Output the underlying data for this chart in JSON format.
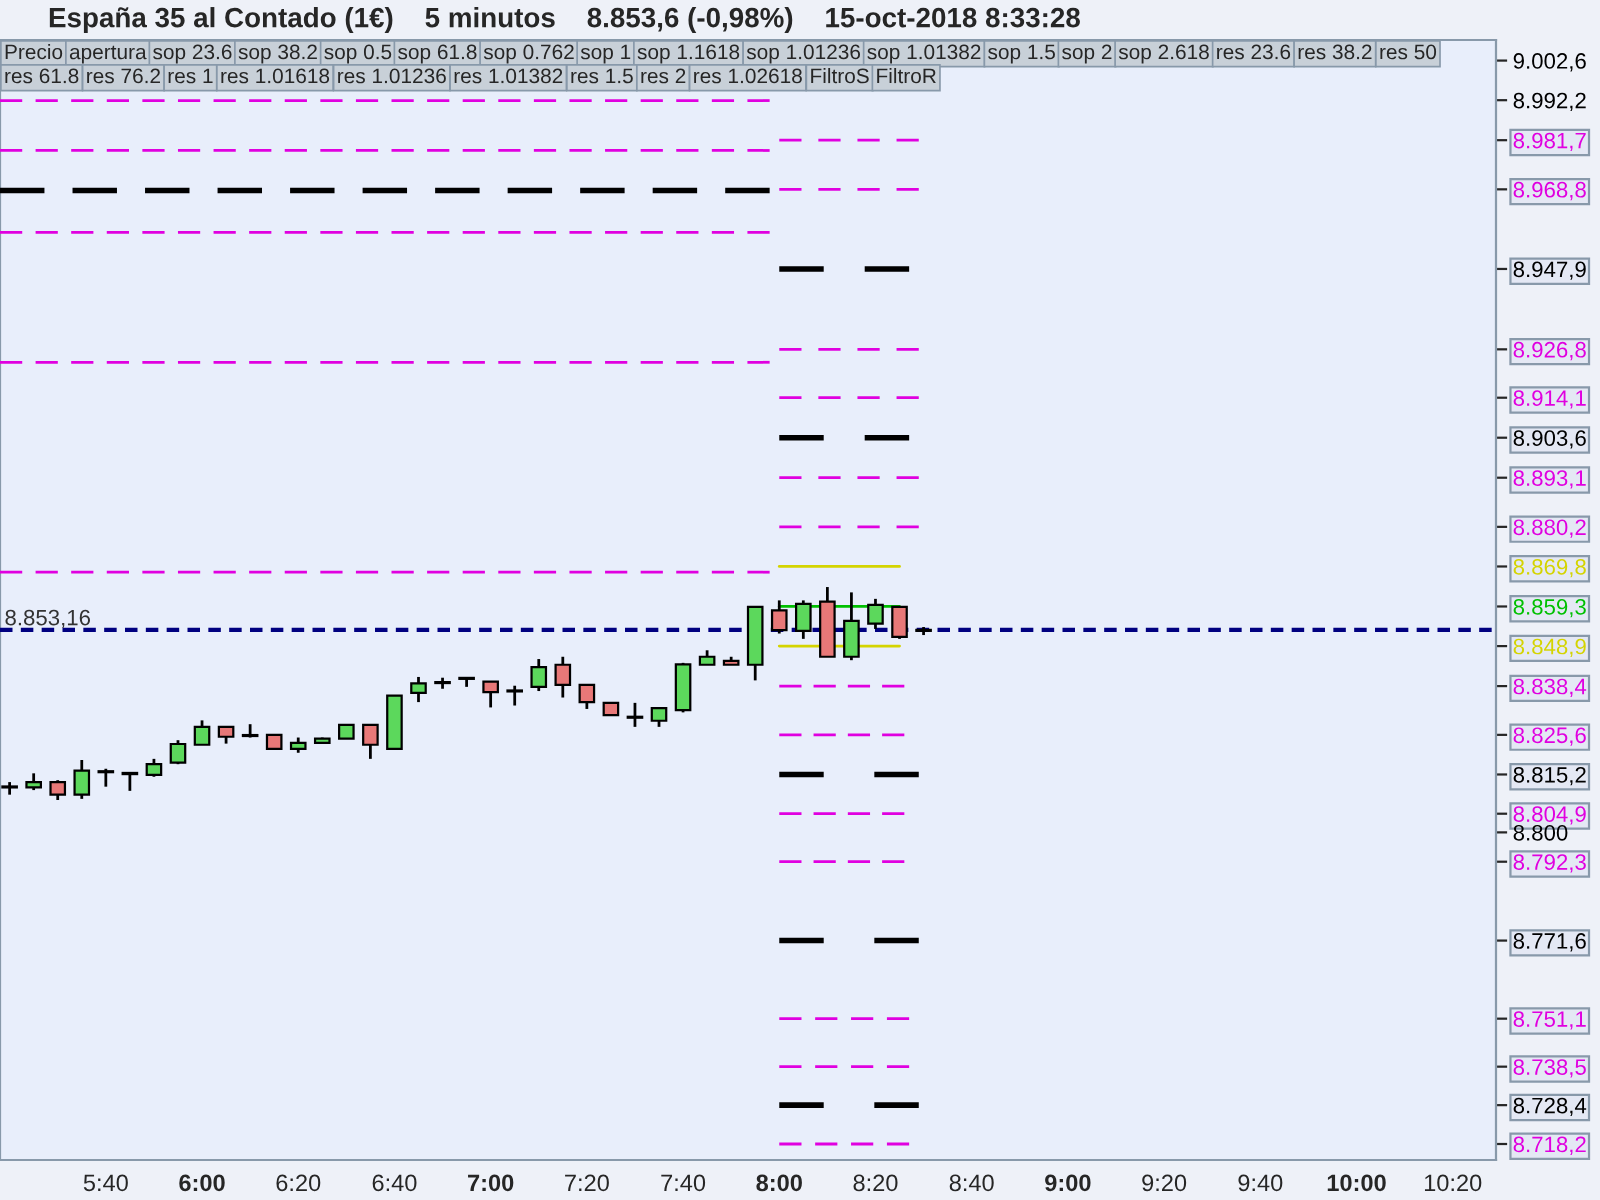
{
  "chart_data": {
    "type": "candlestick",
    "title": "España 35 al Contado (1€)    5 minutos    8.853,6 (-0,98%)    15-oct-2018 8:33:28",
    "annotations": [
      "Precio",
      "apertura",
      "sop 23.6",
      "sop 38.2",
      "sop 0.5",
      "sop 61.8",
      "sop 0.762",
      "sop 1",
      "sop 1.1618",
      "sop 1.01236",
      "sop 1.01382",
      "sop 1.5",
      "sop 2",
      "sop 2.618",
      "res 23.6",
      "res 38.2",
      "res 50",
      "res 61.8",
      "res 76.2",
      "res 1",
      "res 1.01618",
      "res 1.01236",
      "res 1.01382",
      "res 1.5",
      "res 2",
      "res 1.02618",
      "FiltroS",
      "FiltroR"
    ],
    "xlim": [
      "2018-10-15T05:18",
      "2018-10-15T10:29"
    ],
    "xticks": [
      {
        "value": "2018-10-15T05:40",
        "label": "5:40"
      },
      {
        "value": "2018-10-15T06:00",
        "label": "6:00"
      },
      {
        "value": "2018-10-15T06:20",
        "label": "6:20"
      },
      {
        "value": "2018-10-15T06:40",
        "label": "6:40"
      },
      {
        "value": "2018-10-15T07:00",
        "label": "7:00"
      },
      {
        "value": "2018-10-15T07:20",
        "label": "7:20"
      },
      {
        "value": "2018-10-15T07:40",
        "label": "7:40"
      },
      {
        "value": "2018-10-15T08:00",
        "label": "8:00"
      },
      {
        "value": "2018-10-15T08:20",
        "label": "8:20"
      },
      {
        "value": "2018-10-15T08:40",
        "label": "8:40"
      },
      {
        "value": "2018-10-15T09:00",
        "label": "9:00"
      },
      {
        "value": "2018-10-15T09:20",
        "label": "9:20"
      },
      {
        "value": "2018-10-15T09:40",
        "label": "9:40"
      },
      {
        "value": "2018-10-15T10:00",
        "label": "10:00"
      },
      {
        "value": "2018-10-15T10:20",
        "label": "10:20"
      }
    ],
    "ylim": [
      8714,
      9008
    ],
    "yticks": [
      {
        "value": 9002.6,
        "label": "9.002,6"
      },
      {
        "value": 8992.2,
        "label": "8.992,2"
      },
      {
        "value": 8981.7,
        "label": "8.981,7"
      },
      {
        "value": 8968.8,
        "label": "8.968,8"
      },
      {
        "value": 8947.9,
        "label": "8.947,9"
      },
      {
        "value": 8926.8,
        "label": "8.926,8"
      },
      {
        "value": 8914.1,
        "label": "8.914,1"
      },
      {
        "value": 8903.6,
        "label": "8.903,6"
      },
      {
        "value": 8893.1,
        "label": "8.893,1"
      },
      {
        "value": 8880.2,
        "label": "8.880,2"
      },
      {
        "value": 8869.8,
        "label": "8.869,8"
      },
      {
        "value": 8859.3,
        "label": "8.859,3"
      },
      {
        "value": 8848.9,
        "label": "8.848,9"
      },
      {
        "value": 8838.4,
        "label": "8.838,4"
      },
      {
        "value": 8825.6,
        "label": "8.825,6"
      },
      {
        "value": 8815.2,
        "label": "8.815,2"
      },
      {
        "value": 8804.9,
        "label": "8.804,9"
      },
      {
        "value": 8800,
        "label": "8.800"
      },
      {
        "value": 8792.3,
        "label": "8.792,3"
      },
      {
        "value": 8771.6,
        "label": "8.771,6"
      },
      {
        "value": 8751.1,
        "label": "8.751,1"
      },
      {
        "value": 8738.5,
        "label": "8.738,5"
      },
      {
        "value": 8728.4,
        "label": "8.728,4"
      },
      {
        "value": 8718.2,
        "label": "8.718,2"
      }
    ],
    "grid": false,
    "legend": false,
    "ref_lines": [
      {
        "axis": "y",
        "value": 8853.16,
        "label": "8.853,16",
        "color": "#000080",
        "line_style": "dashed"
      }
    ],
    "series": [
      {
        "x": [
          "2018-10-15T05:20",
          "2018-10-15T05:25",
          "2018-10-15T05:30",
          "2018-10-15T05:35",
          "2018-10-15T05:40",
          "2018-10-15T05:45",
          "2018-10-15T05:50",
          "2018-10-15T05:55",
          "2018-10-15T06:00",
          "2018-10-15T06:05",
          "2018-10-15T06:10",
          "2018-10-15T06:15",
          "2018-10-15T06:20",
          "2018-10-15T06:25",
          "2018-10-15T06:30",
          "2018-10-15T06:35",
          "2018-10-15T06:40",
          "2018-10-15T06:45",
          "2018-10-15T06:50",
          "2018-10-15T06:55",
          "2018-10-15T07:00",
          "2018-10-15T07:05",
          "2018-10-15T07:10",
          "2018-10-15T07:15",
          "2018-10-15T07:20",
          "2018-10-15T07:25",
          "2018-10-15T07:30",
          "2018-10-15T07:35",
          "2018-10-15T07:40",
          "2018-10-15T07:45",
          "2018-10-15T07:50",
          "2018-10-15T07:55",
          "2018-10-15T08:00",
          "2018-10-15T08:05",
          "2018-10-15T08:10",
          "2018-10-15T08:15",
          "2018-10-15T08:20",
          "2018-10-15T08:25",
          "2018-10-15T08:30"
        ],
        "ohlc": [
          [
            8811.8,
            8813.2,
            8809.9,
            8811.8
          ],
          [
            8811.8,
            8815.5,
            8811.1,
            8813.2
          ],
          [
            8813.2,
            8813.7,
            8808.5,
            8809.9
          ],
          [
            8809.9,
            8819.0,
            8808.8,
            8816.2
          ],
          [
            8815.8,
            8816.7,
            8812.0,
            8815.8
          ],
          [
            8815.6,
            8815.8,
            8810.9,
            8815.3
          ],
          [
            8815.1,
            8819.3,
            8814.6,
            8817.9
          ],
          [
            8818.3,
            8824.2,
            8817.9,
            8823.2
          ],
          [
            8823.0,
            8829.4,
            8823.0,
            8827.7
          ],
          [
            8827.7,
            8827.7,
            8823.3,
            8825.1
          ],
          [
            8825.4,
            8828.4,
            8824.9,
            8825.3
          ],
          [
            8825.6,
            8825.6,
            8821.8,
            8821.9
          ],
          [
            8821.9,
            8824.9,
            8820.9,
            8823.5
          ],
          [
            8823.5,
            8824.9,
            8823.2,
            8824.6
          ],
          [
            8824.6,
            8828.2,
            8824.6,
            8828.2
          ],
          [
            8828.2,
            8828.2,
            8819.3,
            8823.0
          ],
          [
            8821.9,
            8835.9,
            8821.9,
            8835.9
          ],
          [
            8836.6,
            8840.8,
            8834.2,
            8839.1
          ],
          [
            8839.2,
            8840.6,
            8837.7,
            8839.2
          ],
          [
            8840.3,
            8840.3,
            8838.2,
            8840.3
          ],
          [
            8839.6,
            8839.6,
            8832.8,
            8836.8
          ],
          [
            8837.0,
            8838.5,
            8833.3,
            8837.0
          ],
          [
            8838.2,
            8845.5,
            8837.1,
            8843.4
          ],
          [
            8844.0,
            8846.1,
            8835.4,
            8838.7
          ],
          [
            8838.7,
            8838.7,
            8832.4,
            8834.2
          ],
          [
            8834.0,
            8834.0,
            8830.8,
            8830.8
          ],
          [
            8830.1,
            8834.0,
            8827.7,
            8830.1
          ],
          [
            8829.3,
            8832.9,
            8827.7,
            8832.6
          ],
          [
            8832.1,
            8844.5,
            8831.5,
            8844.1
          ],
          [
            8844.0,
            8847.8,
            8844.0,
            8846.1
          ],
          [
            8845.0,
            8846.1,
            8844.0,
            8844.0
          ],
          [
            8844.0,
            8859.2,
            8839.9,
            8859.2
          ],
          [
            8858.3,
            8860.9,
            8852.2,
            8853.1
          ],
          [
            8852.9,
            8860.9,
            8850.8,
            8860.0
          ],
          [
            8860.6,
            8864.4,
            8846.1,
            8846.1
          ],
          [
            8846.1,
            8863.0,
            8845.2,
            8855.5
          ],
          [
            8854.8,
            8861.3,
            8853.4,
            8859.7
          ],
          [
            8859.2,
            8859.2,
            8850.8,
            8851.3
          ],
          [
            8852.9,
            8853.9,
            8851.8,
            8852.9
          ]
        ]
      },
      {
        "type": "line",
        "color": "#e000e0",
        "line_style": "dashed",
        "x": [
          "2018-10-15T05:18",
          "2018-10-15T07:58"
        ],
        "values": [
          8992.1,
          8992.1
        ]
      },
      {
        "type": "line",
        "color": "#e000e0",
        "line_style": "dashed",
        "x": [
          "2018-10-15T05:18",
          "2018-10-15T07:58"
        ],
        "values": [
          8979.0,
          8979.0
        ]
      },
      {
        "type": "line",
        "color": "#000000",
        "line_style": "dashed",
        "x": [
          "2018-10-15T05:18",
          "2018-10-15T07:58"
        ],
        "values": [
          8968.5,
          8968.5
        ]
      },
      {
        "type": "line",
        "color": "#e000e0",
        "line_style": "dashed",
        "x": [
          "2018-10-15T05:18",
          "2018-10-15T07:58"
        ],
        "values": [
          8957.5,
          8957.5
        ]
      },
      {
        "type": "line",
        "color": "#e000e0",
        "line_style": "dashed",
        "x": [
          "2018-10-15T05:18",
          "2018-10-15T07:58"
        ],
        "values": [
          8923.4,
          8923.4
        ]
      },
      {
        "type": "line",
        "color": "#e000e0",
        "line_style": "dashed",
        "x": [
          "2018-10-15T05:18",
          "2018-10-15T07:58"
        ],
        "values": [
          8868.3,
          8868.3
        ]
      },
      {
        "type": "line",
        "color": "#e000e0",
        "line_style": "dashed",
        "x": [
          "2018-10-15T08:00",
          "2018-10-15T08:29"
        ],
        "values": [
          8981.7,
          8981.7
        ]
      },
      {
        "type": "line",
        "color": "#e000e0",
        "line_style": "dashed",
        "x": [
          "2018-10-15T08:00",
          "2018-10-15T08:29"
        ],
        "values": [
          8968.8,
          8968.8
        ]
      },
      {
        "type": "line",
        "color": "#000000",
        "line_style": "dashed",
        "x": [
          "2018-10-15T08:00",
          "2018-10-15T08:27"
        ],
        "values": [
          8947.9,
          8947.9
        ]
      },
      {
        "type": "line",
        "color": "#e000e0",
        "line_style": "dashed",
        "x": [
          "2018-10-15T08:00",
          "2018-10-15T08:29"
        ],
        "values": [
          8926.8,
          8926.8
        ]
      },
      {
        "type": "line",
        "color": "#e000e0",
        "line_style": "dashed",
        "x": [
          "2018-10-15T08:00",
          "2018-10-15T08:29"
        ],
        "values": [
          8914.1,
          8914.1
        ]
      },
      {
        "type": "line",
        "color": "#000000",
        "line_style": "dashed",
        "x": [
          "2018-10-15T08:00",
          "2018-10-15T08:27"
        ],
        "values": [
          8903.6,
          8903.6
        ]
      },
      {
        "type": "line",
        "color": "#e000e0",
        "line_style": "dashed",
        "x": [
          "2018-10-15T08:00",
          "2018-10-15T08:29"
        ],
        "values": [
          8893.1,
          8893.1
        ]
      },
      {
        "type": "line",
        "color": "#e000e0",
        "line_style": "dashed",
        "x": [
          "2018-10-15T08:00",
          "2018-10-15T08:29"
        ],
        "values": [
          8880.2,
          8880.2
        ]
      },
      {
        "type": "line",
        "color": "#d4d400",
        "line_style": "solid",
        "x": [
          "2018-10-15T08:00",
          "2018-10-15T08:25"
        ],
        "values": [
          8869.8,
          8869.8
        ]
      },
      {
        "type": "line",
        "color": "#00c000",
        "line_style": "solid",
        "x": [
          "2018-10-15T08:00",
          "2018-10-15T08:25"
        ],
        "values": [
          8859.3,
          8859.3
        ]
      },
      {
        "type": "line",
        "color": "#d4d400",
        "line_style": "solid",
        "x": [
          "2018-10-15T08:00",
          "2018-10-15T08:25"
        ],
        "values": [
          8848.9,
          8848.9
        ]
      },
      {
        "type": "line",
        "color": "#e000e0",
        "line_style": "dashed",
        "x": [
          "2018-10-15T08:00",
          "2018-10-15T08:26"
        ],
        "values": [
          8838.4,
          8838.4
        ]
      },
      {
        "type": "line",
        "color": "#e000e0",
        "line_style": "dashed",
        "x": [
          "2018-10-15T08:00",
          "2018-10-15T08:26"
        ],
        "values": [
          8825.6,
          8825.6
        ]
      },
      {
        "type": "line",
        "color": "#000000",
        "line_style": "dashed",
        "x": [
          "2018-10-15T08:00",
          "2018-10-15T08:29"
        ],
        "values": [
          8815.2,
          8815.2
        ]
      },
      {
        "type": "line",
        "color": "#e000e0",
        "line_style": "dashed",
        "x": [
          "2018-10-15T08:00",
          "2018-10-15T08:26"
        ],
        "values": [
          8804.9,
          8804.9
        ]
      },
      {
        "type": "line",
        "color": "#e000e0",
        "line_style": "dashed",
        "x": [
          "2018-10-15T08:00",
          "2018-10-15T08:26"
        ],
        "values": [
          8792.3,
          8792.3
        ]
      },
      {
        "type": "line",
        "color": "#000000",
        "line_style": "dashed",
        "x": [
          "2018-10-15T08:00",
          "2018-10-15T08:29"
        ],
        "values": [
          8771.6,
          8771.6
        ]
      },
      {
        "type": "line",
        "color": "#e000e0",
        "line_style": "dashed",
        "x": [
          "2018-10-15T08:00",
          "2018-10-15T08:27"
        ],
        "values": [
          8751.1,
          8751.1
        ]
      },
      {
        "type": "line",
        "color": "#e000e0",
        "line_style": "dashed",
        "x": [
          "2018-10-15T08:00",
          "2018-10-15T08:27"
        ],
        "values": [
          8738.5,
          8738.5
        ]
      },
      {
        "type": "line",
        "color": "#000000",
        "line_style": "dashed",
        "x": [
          "2018-10-15T08:00",
          "2018-10-15T08:29"
        ],
        "values": [
          8728.4,
          8728.4
        ]
      },
      {
        "type": "line",
        "color": "#e000e0",
        "line_style": "dashed",
        "x": [
          "2018-10-15T08:00",
          "2018-10-15T08:27"
        ],
        "values": [
          8718.2,
          8718.2
        ]
      }
    ]
  }
}
